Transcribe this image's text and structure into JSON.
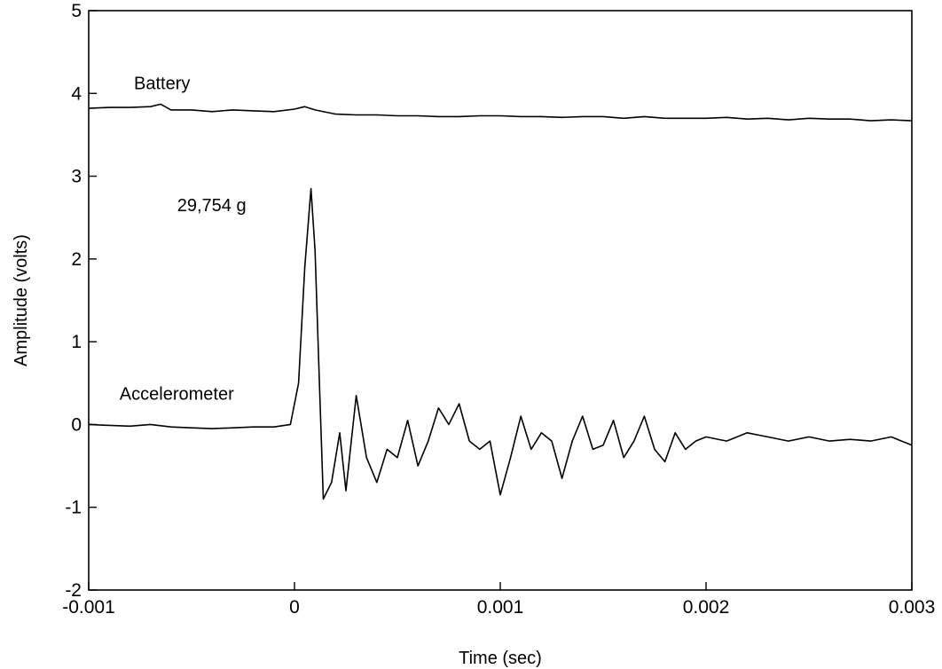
{
  "chart_data": {
    "type": "line",
    "title": "",
    "xlabel": "Time (sec)",
    "ylabel": "Amplitude (volts)",
    "xlim": [
      -0.001,
      0.003
    ],
    "ylim": [
      -2,
      5
    ],
    "grid": false,
    "x_ticks": [
      -0.001,
      0,
      0.001,
      0.002,
      0.003
    ],
    "x_tick_labels": [
      "-0.001",
      "0",
      "0.001",
      "0.002",
      "0.003"
    ],
    "y_ticks": [
      -2,
      -1,
      0,
      1,
      2,
      3,
      4,
      5
    ],
    "y_tick_labels": [
      "-2",
      "-1",
      "0",
      "1",
      "2",
      "3",
      "4",
      "5"
    ],
    "annotations": [
      {
        "text": "Battery",
        "x": -0.00078,
        "y": 4.05
      },
      {
        "text": "29,754 g",
        "x": -0.00057,
        "y": 2.58
      },
      {
        "text": "Accelerometer",
        "x": -0.00085,
        "y": 0.3
      }
    ],
    "series": [
      {
        "label": "Battery",
        "x": [
          -0.001,
          -0.0009,
          -0.0008,
          -0.0007,
          -0.00065,
          -0.0006,
          -0.0005,
          -0.0004,
          -0.0003,
          -0.0002,
          -0.0001,
          0,
          5e-05,
          0.0001,
          0.0002,
          0.0003,
          0.0004,
          0.0005,
          0.0006,
          0.0007,
          0.0008,
          0.0009,
          0.001,
          0.0011,
          0.0012,
          0.0013,
          0.0014,
          0.0015,
          0.0016,
          0.0017,
          0.0018,
          0.0019,
          0.002,
          0.0021,
          0.0022,
          0.0023,
          0.0024,
          0.0025,
          0.0026,
          0.0027,
          0.0028,
          0.0029,
          0.003
        ],
        "y": [
          3.82,
          3.83,
          3.83,
          3.84,
          3.87,
          3.8,
          3.8,
          3.78,
          3.8,
          3.79,
          3.78,
          3.81,
          3.84,
          3.8,
          3.75,
          3.74,
          3.74,
          3.73,
          3.73,
          3.72,
          3.72,
          3.73,
          3.73,
          3.72,
          3.72,
          3.71,
          3.72,
          3.72,
          3.7,
          3.72,
          3.7,
          3.7,
          3.7,
          3.71,
          3.69,
          3.7,
          3.68,
          3.7,
          3.69,
          3.69,
          3.67,
          3.68,
          3.67
        ]
      },
      {
        "label": "Accelerometer",
        "x": [
          -0.001,
          -0.0009,
          -0.0008,
          -0.0007,
          -0.0006,
          -0.0005,
          -0.0004,
          -0.0003,
          -0.0002,
          -0.0001,
          -2e-05,
          2e-05,
          5e-05,
          8e-05,
          0.0001,
          0.00012,
          0.00014,
          0.00018,
          0.00022,
          0.00025,
          0.0003,
          0.00035,
          0.0004,
          0.00045,
          0.0005,
          0.00055,
          0.0006,
          0.00065,
          0.0007,
          0.00075,
          0.0008,
          0.00085,
          0.0009,
          0.00095,
          0.001,
          0.00105,
          0.0011,
          0.00115,
          0.0012,
          0.00125,
          0.0013,
          0.00135,
          0.0014,
          0.00145,
          0.0015,
          0.00155,
          0.0016,
          0.00165,
          0.0017,
          0.00175,
          0.0018,
          0.00185,
          0.0019,
          0.00195,
          0.002,
          0.0021,
          0.0022,
          0.0023,
          0.0024,
          0.0025,
          0.0026,
          0.0027,
          0.0028,
          0.0029,
          0.003
        ],
        "y": [
          0.0,
          -0.01,
          -0.02,
          0.0,
          -0.03,
          -0.04,
          -0.05,
          -0.04,
          -0.03,
          -0.03,
          0.0,
          0.5,
          1.9,
          2.85,
          2.1,
          0.6,
          -0.9,
          -0.7,
          -0.1,
          -0.8,
          0.35,
          -0.4,
          -0.7,
          -0.3,
          -0.4,
          0.05,
          -0.5,
          -0.2,
          0.2,
          0.0,
          0.25,
          -0.2,
          -0.3,
          -0.2,
          -0.85,
          -0.4,
          0.1,
          -0.3,
          -0.1,
          -0.2,
          -0.65,
          -0.2,
          0.1,
          -0.3,
          -0.25,
          0.05,
          -0.4,
          -0.2,
          0.1,
          -0.3,
          -0.45,
          -0.1,
          -0.3,
          -0.2,
          -0.15,
          -0.2,
          -0.1,
          -0.15,
          -0.2,
          -0.15,
          -0.2,
          -0.18,
          -0.2,
          -0.15,
          -0.25
        ]
      }
    ]
  }
}
